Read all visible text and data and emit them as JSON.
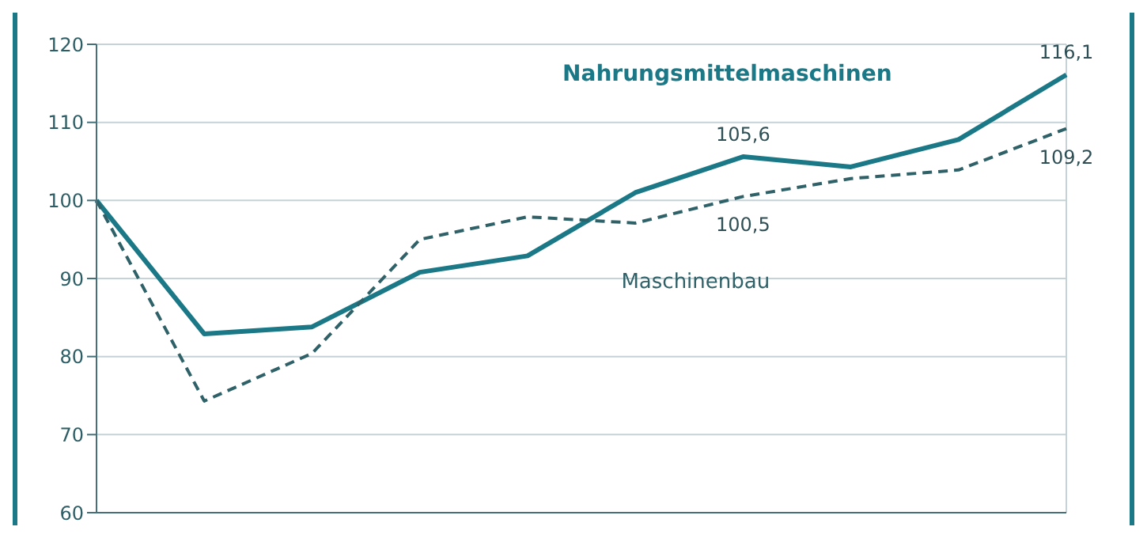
{
  "chart_data": {
    "type": "line",
    "categories": [
      null,
      null,
      null,
      null,
      null,
      null,
      null,
      null,
      null,
      null
    ],
    "tick_labels": "y",
    "ylim": [
      60,
      120
    ],
    "yticks": [
      60,
      70,
      80,
      90,
      100,
      110,
      120
    ],
    "grid": true,
    "legend": false,
    "marker": "none",
    "series": [
      {
        "name": "Nahrungsmittelmaschinen",
        "color": "#1b7886",
        "line_style": "solid",
        "values": [
          100,
          82.9,
          83.8,
          90.8,
          92.9,
          101,
          105.6,
          104.3,
          107.8,
          116.1
        ],
        "value_labels": [
          null,
          null,
          null,
          null,
          null,
          null,
          "105,6",
          null,
          null,
          "116,1"
        ]
      },
      {
        "name": "Maschinenbau",
        "color": "#2f6168",
        "line_style": "dashed",
        "values": [
          100,
          74.3,
          80.4,
          95,
          97.9,
          97.1,
          100.5,
          102.8,
          103.9,
          109.2
        ],
        "value_labels": [
          null,
          null,
          null,
          null,
          null,
          null,
          "100,5",
          null,
          null,
          "109,2"
        ]
      }
    ]
  }
}
